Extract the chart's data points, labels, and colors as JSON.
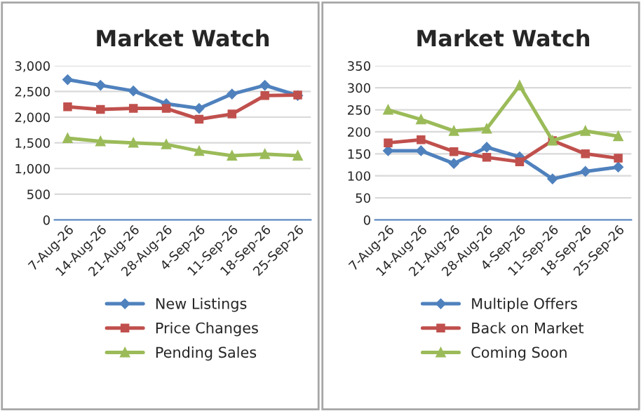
{
  "chart_data": [
    {
      "type": "line",
      "title": "Market Watch",
      "categories": [
        "7-Aug-26",
        "14-Aug-26",
        "21-Aug-26",
        "28-Aug-26",
        "4-Sep-26",
        "11-Sep-26",
        "18-Sep-26",
        "25-Sep-26"
      ],
      "series": [
        {
          "name": "New Listings",
          "color": "#4f81bd",
          "marker": "diamond",
          "values": [
            2730,
            2620,
            2510,
            2260,
            2170,
            2450,
            2620,
            2420
          ]
        },
        {
          "name": "Price Changes",
          "color": "#c0504d",
          "marker": "square",
          "values": [
            2200,
            2150,
            2170,
            2170,
            1960,
            2060,
            2420,
            2430
          ]
        },
        {
          "name": "Pending Sales",
          "color": "#9bbb59",
          "marker": "triangle",
          "values": [
            1590,
            1530,
            1500,
            1470,
            1340,
            1250,
            1280,
            1250
          ]
        }
      ],
      "ylim": [
        0,
        3000
      ],
      "yticks": [
        {
          "value": 0,
          "label": "0"
        },
        {
          "value": 500,
          "label": "500"
        },
        {
          "value": 1000,
          "label": "1,000"
        },
        {
          "value": 1500,
          "label": "1,500"
        },
        {
          "value": 2000,
          "label": "2,000"
        },
        {
          "value": 2500,
          "label": "2,500"
        },
        {
          "value": 3000,
          "label": "3,000"
        }
      ],
      "grid": "y",
      "legend": "bottom"
    },
    {
      "type": "line",
      "title": "Market Watch",
      "categories": [
        "7-Aug-26",
        "14-Aug-26",
        "21-Aug-26",
        "28-Aug-26",
        "4-Sep-26",
        "11-Sep-26",
        "18-Sep-26",
        "25-Sep-26"
      ],
      "series": [
        {
          "name": "Multiple Offers",
          "color": "#4f81bd",
          "marker": "diamond",
          "values": [
            157,
            157,
            128,
            165,
            143,
            93,
            110,
            120
          ]
        },
        {
          "name": "Back on Market",
          "color": "#c0504d",
          "marker": "square",
          "values": [
            175,
            182,
            155,
            142,
            132,
            180,
            150,
            140
          ]
        },
        {
          "name": "Coming Soon",
          "color": "#9bbb59",
          "marker": "triangle",
          "values": [
            250,
            228,
            202,
            207,
            305,
            180,
            202,
            190
          ]
        }
      ],
      "ylim": [
        0,
        350
      ],
      "yticks": [
        0,
        50,
        100,
        150,
        200,
        250,
        300,
        350
      ],
      "grid": "y",
      "legend": "bottom"
    }
  ]
}
